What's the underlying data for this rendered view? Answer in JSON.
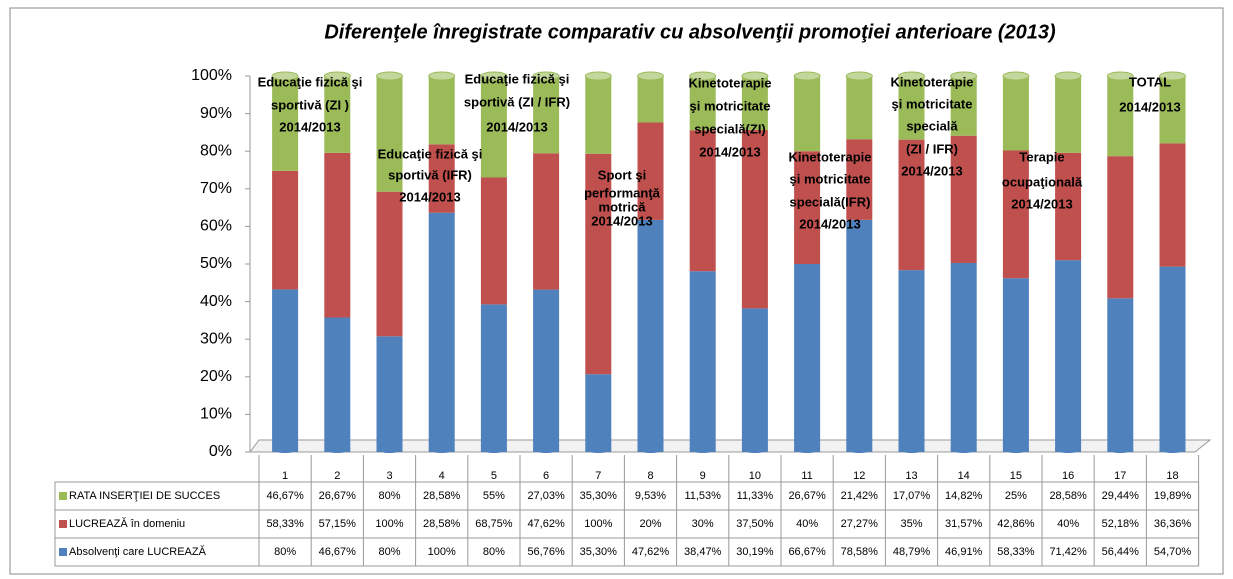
{
  "chart_data": {
    "type": "bar",
    "stacked_percent": true,
    "title": "Diferenţele înregistrate comparativ cu absolvenţii promoţiei anterioare (2013)",
    "categories": [
      "1",
      "2",
      "3",
      "4",
      "5",
      "6",
      "7",
      "8",
      "9",
      "10",
      "11",
      "12",
      "13",
      "14",
      "15",
      "16",
      "17",
      "18"
    ],
    "series": [
      {
        "name": "Absolvenţi care LUCREAZĂ",
        "color": "#4f81bd",
        "values": [
          80,
          46.67,
          80,
          100,
          80,
          56.76,
          35.3,
          47.62,
          38.47,
          30.19,
          66.67,
          78.58,
          48.79,
          46.91,
          58.33,
          71.42,
          56.44,
          54.7
        ],
        "value_labels": [
          "80%",
          "46,67%",
          "80%",
          "100%",
          "80%",
          "56,76%",
          "35,30%",
          "47,62%",
          "38,47%",
          "30,19%",
          "66,67%",
          "78,58%",
          "48,79%",
          "46,91%",
          "58,33%",
          "71,42%",
          "56,44%",
          "54,70%"
        ]
      },
      {
        "name": "LUCREAZĂ în  domeniu",
        "color": "#c0504d",
        "values": [
          58.33,
          57.15,
          100,
          28.58,
          68.75,
          47.62,
          100,
          20,
          30,
          37.5,
          40,
          27.27,
          35,
          31.57,
          42.86,
          40,
          52.18,
          36.36
        ],
        "value_labels": [
          "58,33%",
          "57,15%",
          "100%",
          "28,58%",
          "68,75%",
          "47,62%",
          "100%",
          "20%",
          "30%",
          "37,50%",
          "40%",
          "27,27%",
          "35%",
          "31,57%",
          "42,86%",
          "40%",
          "52,18%",
          "36,36%"
        ]
      },
      {
        "name": "RATA INSERŢIEI  DE SUCCES",
        "color": "#9bbb59",
        "values": [
          46.67,
          26.67,
          80,
          28.58,
          55,
          27.03,
          35.3,
          9.53,
          11.53,
          11.33,
          26.67,
          21.42,
          17.07,
          14.82,
          25,
          28.58,
          29.44,
          19.89
        ],
        "value_labels": [
          "46,67%",
          "26,67%",
          "80%",
          "28,58%",
          "55%",
          "27,03%",
          "35,30%",
          "9,53%",
          "11,53%",
          "11,33%",
          "26,67%",
          "21,42%",
          "17,07%",
          "14,82%",
          "25%",
          "28,58%",
          "29,44%",
          "19,89%"
        ]
      }
    ],
    "ylim": [
      0,
      100
    ],
    "yticks": [
      {
        "value": 0,
        "label": "0%"
      },
      {
        "value": 10,
        "label": "10%"
      },
      {
        "value": 20,
        "label": "20%"
      },
      {
        "value": 30,
        "label": "30%"
      },
      {
        "value": 40,
        "label": "40%"
      },
      {
        "value": 50,
        "label": "50%"
      },
      {
        "value": 60,
        "label": "60%"
      },
      {
        "value": 70,
        "label": "70%"
      },
      {
        "value": 80,
        "label": "80%"
      },
      {
        "value": 90,
        "label": "90%"
      },
      {
        "value": 100,
        "label": "100%"
      }
    ],
    "annotations": [
      [
        "Educaţie fizică şi",
        "sportivă (ZI )",
        "2014/2013"
      ],
      [
        "Educaţie fizică şi",
        "sportivă (IFR)",
        "2014/2013"
      ],
      [
        "Educaţie fizică şi",
        "sportivă (ZI / IFR)",
        "2014/2013"
      ],
      [
        "Sport şi",
        "performanţă",
        "motrică",
        "2014/2013"
      ],
      [
        "Kinetoterapie",
        "şi motricitate",
        "specială(ZI)",
        "2014/2013"
      ],
      [
        "Kinetoterapie",
        "şi motricitate",
        "specială(IFR)",
        "2014/2013"
      ],
      [
        "Kinetoterapie",
        "şi motricitate",
        "specială",
        "(ZI / IFR)",
        "2014/2013"
      ],
      [
        "Terapie",
        "ocupaţională",
        "2014/2013"
      ],
      [
        "TOTAL",
        "2014/2013"
      ]
    ]
  }
}
